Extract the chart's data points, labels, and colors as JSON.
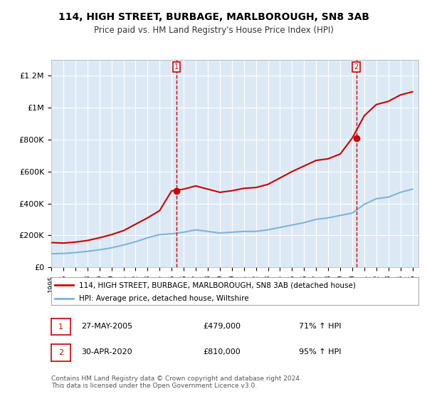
{
  "title": "114, HIGH STREET, BURBAGE, MARLBOROUGH, SN8 3AB",
  "subtitle": "Price paid vs. HM Land Registry's House Price Index (HPI)",
  "ylabel_ticks": [
    "£0",
    "£200K",
    "£400K",
    "£600K",
    "£800K",
    "£1M",
    "£1.2M"
  ],
  "ytick_values": [
    0,
    200000,
    400000,
    600000,
    800000,
    1000000,
    1200000
  ],
  "ylim": [
    0,
    1300000
  ],
  "xlim_start": 1995,
  "xlim_end": 2025.5,
  "background_color": "#dce9f5",
  "plot_bg": "#dce9f5",
  "red_color": "#cc0000",
  "blue_color": "#7fb4d8",
  "sale1_x": 2005.4,
  "sale1_y": 479000,
  "sale1_label": "1",
  "sale2_x": 2020.33,
  "sale2_y": 810000,
  "sale2_label": "2",
  "legend_line1": "114, HIGH STREET, BURBAGE, MARLBOROUGH, SN8 3AB (detached house)",
  "legend_line2": "HPI: Average price, detached house, Wiltshire",
  "ann1_box": "1",
  "ann1_date": "27-MAY-2005",
  "ann1_price": "£479,000",
  "ann1_pct": "71% ↑ HPI",
  "ann2_box": "2",
  "ann2_date": "30-APR-2020",
  "ann2_price": "£810,000",
  "ann2_pct": "95% ↑ HPI",
  "footer": "Contains HM Land Registry data © Crown copyright and database right 2024.\nThis data is licensed under the Open Government Licence v3.0.",
  "hpi_years": [
    1995,
    1996,
    1997,
    1998,
    1999,
    2000,
    2001,
    2002,
    2003,
    2004,
    2005,
    2006,
    2007,
    2008,
    2009,
    2010,
    2011,
    2012,
    2013,
    2014,
    2015,
    2016,
    2017,
    2018,
    2019,
    2020,
    2021,
    2022,
    2023,
    2024,
    2025
  ],
  "hpi_values": [
    85000,
    87000,
    92000,
    100000,
    110000,
    122000,
    140000,
    160000,
    185000,
    205000,
    210000,
    220000,
    235000,
    225000,
    215000,
    220000,
    225000,
    225000,
    235000,
    250000,
    265000,
    280000,
    300000,
    310000,
    325000,
    340000,
    395000,
    430000,
    440000,
    470000,
    490000
  ],
  "red_years": [
    1995,
    1996,
    1997,
    1998,
    1999,
    2000,
    2001,
    2002,
    2003,
    2004,
    2005,
    2006,
    2007,
    2008,
    2009,
    2010,
    2011,
    2012,
    2013,
    2014,
    2015,
    2016,
    2017,
    2018,
    2019,
    2020,
    2021,
    2022,
    2023,
    2024,
    2025
  ],
  "red_values": [
    155000,
    152000,
    158000,
    168000,
    185000,
    205000,
    230000,
    270000,
    310000,
    355000,
    479000,
    490000,
    510000,
    490000,
    470000,
    480000,
    495000,
    500000,
    520000,
    560000,
    600000,
    635000,
    670000,
    680000,
    710000,
    810000,
    950000,
    1020000,
    1040000,
    1080000,
    1100000
  ]
}
